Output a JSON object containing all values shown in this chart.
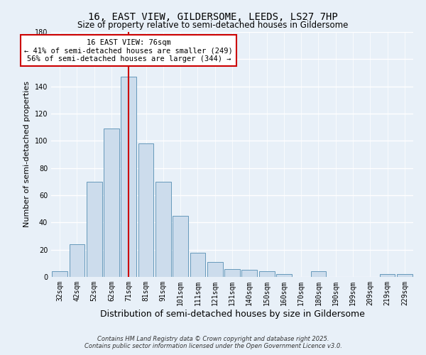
{
  "title": "16, EAST VIEW, GILDERSOME, LEEDS, LS27 7HP",
  "subtitle": "Size of property relative to semi-detached houses in Gildersome",
  "xlabel": "Distribution of semi-detached houses by size in Gildersome",
  "ylabel": "Number of semi-detached properties",
  "categories": [
    "32sqm",
    "42sqm",
    "52sqm",
    "62sqm",
    "71sqm",
    "81sqm",
    "91sqm",
    "101sqm",
    "111sqm",
    "121sqm",
    "131sqm",
    "140sqm",
    "150sqm",
    "160sqm",
    "170sqm",
    "180sqm",
    "190sqm",
    "199sqm",
    "209sqm",
    "219sqm",
    "229sqm"
  ],
  "values": [
    4,
    24,
    70,
    109,
    147,
    98,
    70,
    45,
    18,
    11,
    6,
    5,
    4,
    2,
    0,
    4,
    0,
    0,
    0,
    2,
    2
  ],
  "bar_color": "#ccdcec",
  "bar_edge_color": "#6699bb",
  "red_line_index": 4,
  "red_line_label": "16 EAST VIEW: 76sqm",
  "annotation_smaller": "← 41% of semi-detached houses are smaller (249)",
  "annotation_larger": "56% of semi-detached houses are larger (344) →",
  "annotation_box_color": "#ffffff",
  "annotation_box_edge": "#cc0000",
  "ylim": [
    0,
    180
  ],
  "yticks": [
    0,
    20,
    40,
    60,
    80,
    100,
    120,
    140,
    160,
    180
  ],
  "footnote1": "Contains HM Land Registry data © Crown copyright and database right 2025.",
  "footnote2": "Contains public sector information licensed under the Open Government Licence v3.0.",
  "bg_color": "#e8f0f8",
  "grid_color": "#ffffff",
  "title_fontsize": 10,
  "subtitle_fontsize": 8.5,
  "axis_label_fontsize": 8,
  "tick_fontsize": 7,
  "footnote_fontsize": 6
}
